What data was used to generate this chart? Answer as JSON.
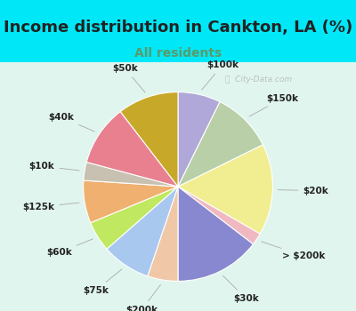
{
  "title": "Income distribution in Cankton, LA (%)",
  "subtitle": "All residents",
  "subtitle_color": "#5a9a6a",
  "background_outer": "#00e8f8",
  "background_inner_top": "#e8f5ee",
  "background_inner_bottom": "#d0ede0",
  "watermark": "ⓘ  City-Data.com",
  "slices": [
    {
      "label": "$100k",
      "value": 7,
      "color": "#b0a8d8"
    },
    {
      "label": "$150k",
      "value": 10,
      "color": "#b8cfa8"
    },
    {
      "label": "$20k",
      "value": 15,
      "color": "#f0ee90"
    },
    {
      "label": "> $200k",
      "value": 2,
      "color": "#f0b8c0"
    },
    {
      "label": "$30k",
      "value": 14,
      "color": "#8888d0"
    },
    {
      "label": "$200k",
      "value": 5,
      "color": "#f0c8a8"
    },
    {
      "label": "$75k",
      "value": 8,
      "color": "#a8c8f0"
    },
    {
      "label": "$60k",
      "value": 5,
      "color": "#c0e860"
    },
    {
      "label": "$125k",
      "value": 7,
      "color": "#f0b070"
    },
    {
      "label": "$10k",
      "value": 3,
      "color": "#c8c0b0"
    },
    {
      "label": "$40k",
      "value": 10,
      "color": "#e88090"
    },
    {
      "label": "$50k",
      "value": 10,
      "color": "#c8a828"
    }
  ],
  "label_fontsize": 7.5,
  "title_fontsize": 13,
  "subtitle_fontsize": 10
}
